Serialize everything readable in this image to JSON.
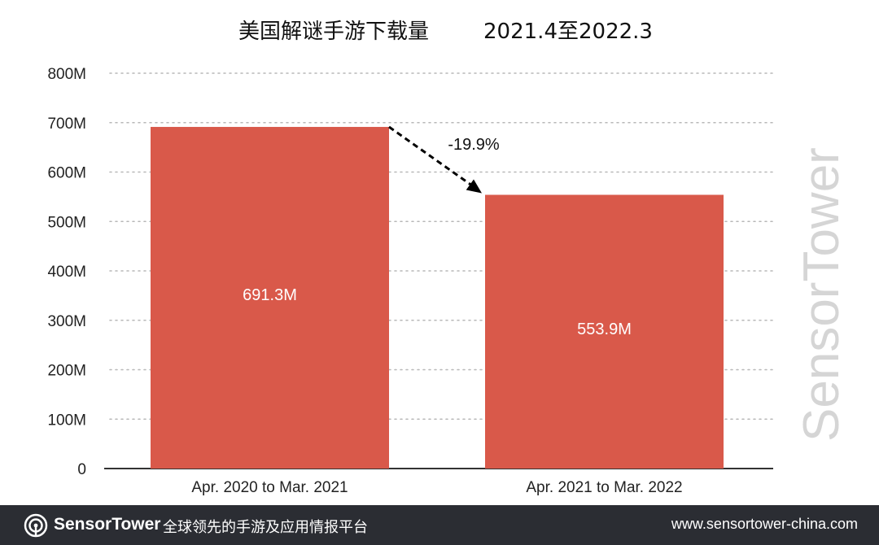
{
  "chart_data": {
    "type": "bar",
    "title": "美国解谜手游下载量",
    "subtitle": "2021.4至2022.3",
    "categories": [
      "Apr. 2020 to Mar. 2021",
      "Apr. 2021 to Mar. 2022"
    ],
    "values": [
      691.3,
      553.9
    ],
    "value_labels": [
      "691.3M",
      "553.9M"
    ],
    "ylim": [
      0,
      800
    ],
    "yticks": [
      0,
      100,
      200,
      300,
      400,
      500,
      600,
      700,
      800
    ],
    "ytick_labels": [
      "0",
      "100M",
      "200M",
      "300M",
      "400M",
      "500M",
      "600M",
      "700M",
      "800M"
    ],
    "grid": true,
    "annotation": {
      "text": "-19.9%",
      "from_category": 0,
      "to_category": 1
    },
    "colors": {
      "bar": "#d9594a",
      "grid": "#b8b8b8",
      "axis": "#333333"
    }
  },
  "watermark": {
    "text": "SensorTower"
  },
  "footer": {
    "brand": "SensorTower",
    "slogan": "全球领先的手游及应用情报平台",
    "url": "www.sensortower-china.com",
    "background": "#2b2d33"
  }
}
